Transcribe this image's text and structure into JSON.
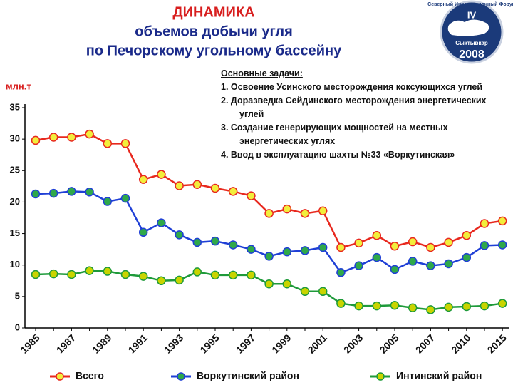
{
  "chart_data": {
    "type": "line",
    "title": [
      "ДИНАМИКА",
      "объемов добычи угля",
      "по Печорскому угольному бассейну"
    ],
    "y_label": "млн.т",
    "annotations": {
      "heading": "Основные задачи:",
      "items": [
        "1. Освоение Усинского месторождения коксующихся углей",
        "2. Доразведка Сейдинского месторождения энергетических углей",
        "3. Создание генерирующих мощностей на местных энергетических углях",
        "4. Ввод в эксплуатацию шахты №33 «Воркутинская»"
      ]
    },
    "categories": [
      "1985",
      null,
      "1987",
      null,
      "1989",
      null,
      "1991",
      null,
      "1993",
      null,
      "1995",
      null,
      "1997",
      null,
      "1999",
      null,
      "2001",
      null,
      "2003",
      null,
      "2005",
      null,
      "2007",
      null,
      "2010",
      null,
      "2015"
    ],
    "series": [
      {
        "name": "Всего",
        "color": "#e8281e",
        "marker_color": "#f2ee3c",
        "values": [
          29.8,
          30.3,
          30.3,
          30.8,
          29.3,
          29.3,
          23.6,
          24.4,
          22.6,
          22.8,
          22.2,
          21.7,
          21.0,
          18.2,
          18.9,
          18.2,
          18.6,
          12.8,
          13.5,
          14.7,
          13.0,
          13.7,
          12.8,
          13.6,
          14.7,
          16.6,
          17.0
        ]
      },
      {
        "name": "Воркутинский район",
        "color": "#1f3fd6",
        "marker_color": "#2fa84a",
        "values": [
          21.3,
          21.4,
          21.7,
          21.6,
          20.1,
          20.6,
          15.2,
          16.7,
          14.8,
          13.6,
          13.8,
          13.2,
          12.5,
          11.4,
          12.1,
          12.3,
          12.8,
          8.8,
          9.9,
          11.2,
          9.3,
          10.6,
          9.9,
          10.2,
          11.2,
          13.1,
          13.2
        ]
      },
      {
        "name": "Интинский район",
        "color": "#1e9a3a",
        "marker_color": "#c9d400",
        "values": [
          8.5,
          8.6,
          8.5,
          9.1,
          9.0,
          8.5,
          8.2,
          7.5,
          7.6,
          8.9,
          8.4,
          8.4,
          8.4,
          7.0,
          7.0,
          5.8,
          5.8,
          3.9,
          3.5,
          3.5,
          3.6,
          3.2,
          2.9,
          3.3,
          3.4,
          3.5,
          3.9
        ]
      }
    ],
    "ylim": [
      0,
      35
    ],
    "yticks": [
      0,
      5,
      10,
      15,
      20,
      25,
      30,
      35
    ],
    "grid": false
  },
  "logo": {
    "top": "Северный Инвестиционный Форум",
    "numeral": "IV",
    "city": "Сыктывкар",
    "year": "2008"
  }
}
